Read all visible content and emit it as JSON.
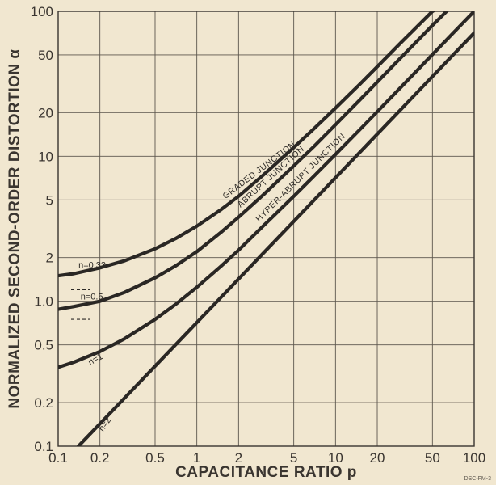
{
  "chart_data": {
    "type": "line",
    "xscale": "log",
    "yscale": "log",
    "xlim": [
      0.1,
      100
    ],
    "ylim": [
      0.1,
      100
    ],
    "grid": true,
    "xlabel": "CAPACITANCE RATIO p",
    "ylabel": "NORMALIZED SECOND-ORDER DISTORTION α",
    "x_ticks": [
      {
        "v": 0.1,
        "label": "0.1"
      },
      {
        "v": 0.2,
        "label": "0.2"
      },
      {
        "v": 0.5,
        "label": "0.5"
      },
      {
        "v": 1,
        "label": "1"
      },
      {
        "v": 2,
        "label": "2"
      },
      {
        "v": 5,
        "label": "5"
      },
      {
        "v": 10,
        "label": "10"
      },
      {
        "v": 20,
        "label": "20"
      },
      {
        "v": 50,
        "label": "50"
      },
      {
        "v": 100,
        "label": "100"
      }
    ],
    "y_ticks": [
      {
        "v": 0.1,
        "label": "0.1"
      },
      {
        "v": 0.2,
        "label": "0.2"
      },
      {
        "v": 0.5,
        "label": "0.5"
      },
      {
        "v": 1,
        "label": "1.0"
      },
      {
        "v": 2,
        "label": "2"
      },
      {
        "v": 5,
        "label": "5"
      },
      {
        "v": 10,
        "label": "10"
      },
      {
        "v": 20,
        "label": "20"
      },
      {
        "v": 50,
        "label": "50"
      },
      {
        "v": 100,
        "label": "100"
      }
    ],
    "series": [
      {
        "name": "GRADED JUNCTION",
        "n_label": "n=0.33",
        "x": [
          0.1,
          0.13,
          0.2,
          0.3,
          0.5,
          0.7,
          1,
          1.5,
          2,
          3,
          5,
          7,
          10,
          15,
          20,
          30,
          50,
          60
        ],
        "y": [
          1.5,
          1.55,
          1.7,
          1.9,
          2.3,
          2.7,
          3.3,
          4.3,
          5.3,
          7.4,
          11.5,
          15.5,
          21.5,
          31.5,
          41.5,
          61.5,
          100,
          110
        ]
      },
      {
        "name": "ABRUPT JUNCTION",
        "n_label": "n=0.5",
        "x": [
          0.1,
          0.13,
          0.2,
          0.3,
          0.5,
          0.7,
          1,
          1.5,
          2,
          3,
          5,
          7,
          10,
          15,
          20,
          30,
          50,
          70,
          80
        ],
        "y": [
          0.88,
          0.92,
          1.0,
          1.15,
          1.45,
          1.75,
          2.2,
          3.0,
          3.8,
          5.4,
          8.6,
          11.7,
          16.5,
          24.5,
          32.5,
          48.5,
          80,
          110,
          120
        ]
      },
      {
        "name": "HYPER-ABRUPT JUNCTION",
        "n_label": "n=1",
        "x": [
          0.1,
          0.13,
          0.2,
          0.3,
          0.5,
          0.7,
          1,
          1.5,
          2,
          3,
          5,
          7,
          10,
          15,
          20,
          30,
          50,
          70,
          100
        ],
        "y": [
          0.35,
          0.38,
          0.45,
          0.55,
          0.75,
          0.95,
          1.25,
          1.75,
          2.25,
          3.3,
          5.3,
          7.3,
          10.3,
          15.3,
          20.3,
          30.3,
          50.3,
          70.3,
          100
        ]
      },
      {
        "name": "",
        "n_label": "n=2",
        "x": [
          0.14,
          100
        ],
        "y": [
          0.1,
          71
        ]
      }
    ],
    "reference_dashes": [
      1.2,
      0.75
    ],
    "figure_code": "DSC-FM-3"
  }
}
